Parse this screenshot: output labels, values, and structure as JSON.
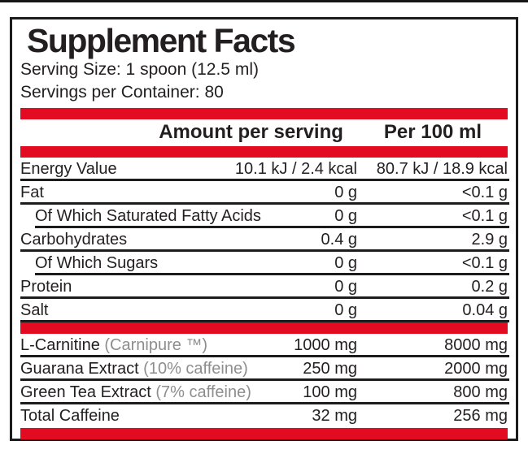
{
  "panel": {
    "title": "Supplement Facts",
    "serving_size": "Serving Size: 1 spoon (12.5 ml)",
    "servings_per_container": "Servings per Container: 80",
    "columns": {
      "amount": "Amount per serving",
      "per100": "Per 100 ml"
    },
    "nutrients": [
      {
        "name": "Energy Value",
        "amount": "10.1 kJ / 2.4 kcal",
        "per100": "80.7 kJ / 18.9 kcal",
        "indent": false
      },
      {
        "name": "Fat",
        "amount": "0 g",
        "per100": "<0.1 g",
        "indent": false
      },
      {
        "name": "Of Which Saturated Fatty Acids",
        "amount": "0 g",
        "per100": "<0.1 g",
        "indent": true
      },
      {
        "name": "Carbohydrates",
        "amount": "0.4 g",
        "per100": "2.9 g",
        "indent": false
      },
      {
        "name": "Of Which Sugars",
        "amount": "0 g",
        "per100": "<0.1 g",
        "indent": true
      },
      {
        "name": "Protein",
        "amount": "0 g",
        "per100": "0.2 g",
        "indent": false
      },
      {
        "name": "Salt",
        "amount": "0 g",
        "per100": "0.04 g",
        "indent": false
      }
    ],
    "actives": [
      {
        "name": "L-Carnitine",
        "note": "(Carnipure ™)",
        "amount": "1000 mg",
        "per100": "8000 mg",
        "no_rule": false
      },
      {
        "name": "Guarana Extract",
        "note": "(10% caffeine)",
        "amount": "250 mg",
        "per100": "2000 mg",
        "no_rule": false
      },
      {
        "name": "Green Tea Extract",
        "note": "(7% caffeine)",
        "amount": "100 mg",
        "per100": "800 mg",
        "no_rule": false
      },
      {
        "name": "Total Caffeine",
        "note": "",
        "amount": "32 mg",
        "per100": "256 mg",
        "no_rule": true
      }
    ],
    "colors": {
      "accent_red": "#e30b22",
      "text_black": "#231f20",
      "note_gray": "#8e8e8e"
    }
  }
}
